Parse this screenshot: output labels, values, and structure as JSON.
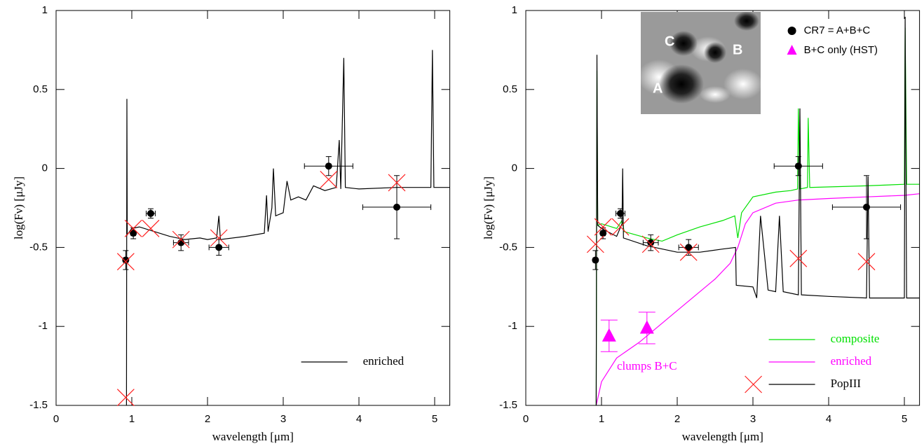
{
  "chart_data": [
    {
      "type": "line",
      "xlabel": "wavelength [μm]",
      "ylabel": "log(Fν) [μJy]",
      "xlim": [
        0,
        5.2
      ],
      "ylim": [
        -1.5,
        1
      ],
      "xticks": [
        0,
        1,
        2,
        3,
        4,
        5
      ],
      "yticks": [
        -1.5,
        -1,
        -0.5,
        0,
        0.5,
        1
      ],
      "legend": "lower right",
      "series": [
        {
          "name": "enriched",
          "color": "#000000",
          "x": [
            0.93,
            0.935,
            0.94,
            1.0,
            1.1,
            1.3,
            1.5,
            1.7,
            1.9,
            2.0,
            2.12,
            2.15,
            2.17,
            2.5,
            2.75,
            2.78,
            2.8,
            2.85,
            2.87,
            2.9,
            3.0,
            3.05,
            3.1,
            3.2,
            3.3,
            3.4,
            3.55,
            3.7,
            3.74,
            3.76,
            3.8,
            3.82,
            4.0,
            4.5,
            4.95,
            4.97,
            4.99,
            5.2
          ],
          "values": [
            -1.5,
            0.44,
            -0.42,
            -0.38,
            -0.37,
            -0.4,
            -0.43,
            -0.45,
            -0.44,
            -0.45,
            -0.44,
            -0.3,
            -0.45,
            -0.43,
            -0.41,
            -0.17,
            -0.4,
            -0.25,
            0,
            -0.3,
            -0.28,
            -0.08,
            -0.2,
            -0.18,
            -0.2,
            -0.11,
            -0.14,
            -0.12,
            0.18,
            -0.13,
            0.7,
            -0.12,
            -0.13,
            -0.12,
            -0.12,
            0.75,
            -0.12,
            -0.12
          ]
        }
      ],
      "points": {
        "color": "#000000",
        "x": [
          0.92,
          1.02,
          1.25,
          1.65,
          2.15,
          3.6,
          4.5
        ],
        "values": [
          -0.58,
          -0.41,
          -0.285,
          -0.47,
          -0.5,
          0.015,
          -0.245
        ],
        "yerr": [
          0.06,
          0.035,
          0.03,
          0.05,
          0.05,
          0.06,
          0.2
        ],
        "xerr": [
          0.03,
          0.03,
          0.06,
          0.1,
          0.13,
          0.32,
          0.45
        ]
      },
      "model_points": {
        "color": "#ff2020",
        "x": [
          0.92,
          1.02,
          1.25,
          1.65,
          2.15,
          3.6,
          4.5,
          0.92
        ],
        "values": [
          -0.59,
          -0.38,
          -0.38,
          -0.45,
          -0.44,
          -0.07,
          -0.09,
          -1.45
        ]
      }
    },
    {
      "type": "line",
      "xlabel": "wavelength [μm]",
      "ylabel": "log(Fν) [μJy]",
      "xlim": [
        0,
        5.2
      ],
      "ylim": [
        -1.5,
        1
      ],
      "xticks": [
        0,
        1,
        2,
        3,
        4,
        5
      ],
      "yticks": [
        -1.5,
        -1,
        -0.5,
        0,
        0.5,
        1
      ],
      "legend": "lower right",
      "series": [
        {
          "name": "composite",
          "color": "#00e000",
          "x": [
            0.93,
            0.94,
            0.95,
            1.0,
            1.2,
            1.27,
            1.3,
            1.6,
            1.8,
            2.0,
            2.3,
            2.6,
            2.76,
            2.8,
            2.85,
            3.0,
            3.3,
            3.5,
            3.59,
            3.6,
            3.62,
            3.72,
            3.73,
            3.75,
            4.5,
            5.0,
            5.01,
            5.03,
            5.2
          ],
          "values": [
            -1.5,
            0.62,
            -0.36,
            -0.35,
            -0.38,
            -0.33,
            -0.4,
            -0.44,
            -0.46,
            -0.42,
            -0.37,
            -0.33,
            -0.3,
            -0.44,
            -0.28,
            -0.18,
            -0.15,
            -0.14,
            -0.13,
            0.38,
            -0.13,
            -0.12,
            0.32,
            -0.12,
            -0.11,
            -0.1,
            0.89,
            -0.1,
            -0.1
          ]
        },
        {
          "name": "enriched",
          "color": "#ff00ff",
          "x": [
            0.93,
            1.0,
            1.2,
            1.5,
            1.8,
            2.0,
            2.2,
            2.5,
            2.7,
            2.8,
            2.9,
            3.0,
            3.3,
            3.6,
            4.0,
            4.5,
            5.0,
            5.2
          ],
          "values": [
            -1.5,
            -1.35,
            -1.2,
            -1.1,
            -0.98,
            -0.9,
            -0.82,
            -0.7,
            -0.6,
            -0.5,
            -0.35,
            -0.28,
            -0.22,
            -0.2,
            -0.19,
            -0.18,
            -0.17,
            -0.16
          ]
        },
        {
          "name": "PopIII",
          "color": "#000000",
          "x": [
            0.93,
            0.94,
            0.95,
            1.0,
            1.2,
            1.27,
            1.28,
            1.29,
            1.6,
            2.0,
            2.3,
            2.6,
            2.77,
            2.78,
            3.0,
            3.05,
            3.1,
            3.2,
            3.3,
            3.35,
            3.4,
            3.6,
            3.62,
            3.64,
            4.0,
            4.5,
            4.52,
            4.54,
            5.0,
            5.01,
            5.03,
            5.2
          ],
          "values": [
            -1.5,
            0.72,
            -0.36,
            -0.38,
            -0.43,
            -0.35,
            0,
            -0.44,
            -0.49,
            -0.53,
            -0.53,
            -0.51,
            -0.5,
            -0.74,
            -0.75,
            -0.82,
            -0.3,
            -0.77,
            -0.78,
            -0.3,
            -0.78,
            -0.8,
            0.38,
            -0.8,
            -0.81,
            -0.82,
            -0.05,
            -0.82,
            -0.82,
            0.96,
            -0.82,
            -0.82
          ]
        }
      ],
      "points": {
        "name": "CR7 = A+B+C",
        "color": "#000000",
        "x": [
          0.92,
          1.02,
          1.25,
          1.65,
          2.15,
          3.6,
          4.5
        ],
        "values": [
          -0.58,
          -0.41,
          -0.285,
          -0.47,
          -0.5,
          0.015,
          -0.245
        ],
        "yerr": [
          0.06,
          0.035,
          0.03,
          0.05,
          0.05,
          0.06,
          0.2
        ],
        "xerr": [
          0.03,
          0.03,
          0.06,
          0.1,
          0.13,
          0.32,
          0.45
        ]
      },
      "triangles": {
        "name": "B+C only (HST)",
        "color": "#ff00ff",
        "x": [
          1.1,
          1.6
        ],
        "values": [
          -1.06,
          -1.01
        ],
        "yerr": [
          0.1,
          0.1
        ]
      },
      "model_points": {
        "color": "#ff2020",
        "x": [
          0.92,
          1.02,
          1.25,
          1.65,
          2.15,
          3.6,
          4.5
        ],
        "values": [
          -0.48,
          -0.37,
          -0.37,
          -0.48,
          -0.53,
          -0.57,
          -0.59
        ]
      },
      "annotations": [
        {
          "text": "clumps B+C",
          "color": "#ff00ff"
        }
      ]
    }
  ],
  "inset": {
    "labels": [
      "C",
      "B",
      "A"
    ]
  }
}
